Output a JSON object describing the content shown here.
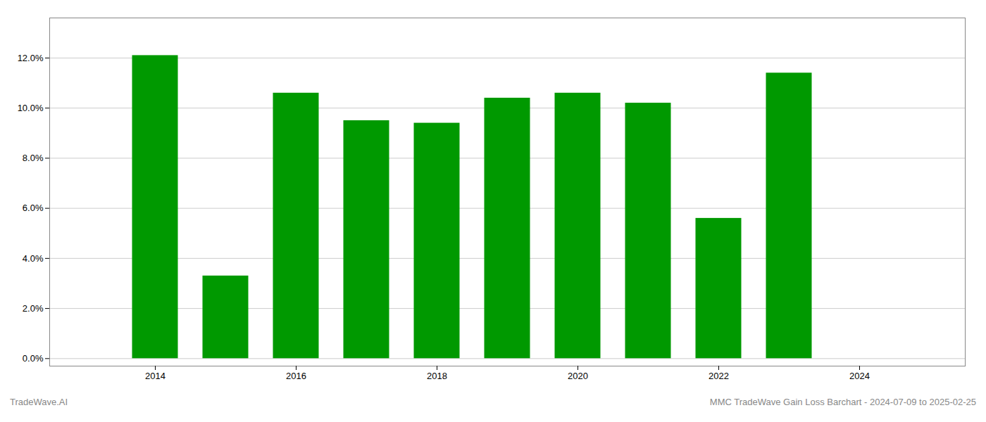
{
  "chart_data": {
    "type": "bar",
    "x": [
      2014,
      2015,
      2016,
      2017,
      2018,
      2019,
      2020,
      2021,
      2022,
      2023
    ],
    "values": [
      0.121,
      0.033,
      0.106,
      0.095,
      0.094,
      0.104,
      0.106,
      0.102,
      0.056,
      0.114
    ],
    "color": "#009900",
    "xlim": [
      2012.5,
      2025.5
    ],
    "xticks": [
      2014,
      2016,
      2018,
      2020,
      2022,
      2024
    ],
    "ylim": [
      -0.003,
      0.136
    ],
    "yticks": [
      {
        "value": 0.0,
        "label": "0.0%"
      },
      {
        "value": 0.02,
        "label": "2.0%"
      },
      {
        "value": 0.04,
        "label": "4.0%"
      },
      {
        "value": 0.06,
        "label": "6.0%"
      },
      {
        "value": 0.08,
        "label": "8.0%"
      },
      {
        "value": 0.1,
        "label": "10.0%"
      },
      {
        "value": 0.12,
        "label": "12.0%"
      }
    ],
    "grid": true,
    "annotations": [
      "TradeWave.AI",
      "MMC TradeWave Gain Loss Barchart - 2024-07-09 to 2025-02-25"
    ]
  }
}
